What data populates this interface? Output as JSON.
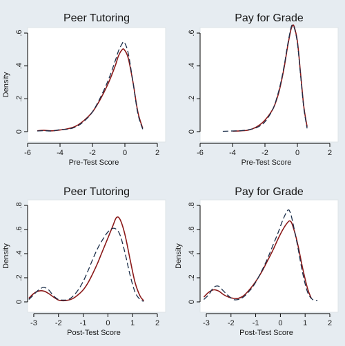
{
  "colors": {
    "background": "#e6ecf1",
    "plot_bg": "#ffffff",
    "solid_line": "#8b1a1a",
    "dashed_line": "#1b2e4a",
    "axis": "#000000"
  },
  "chart_data": [
    {
      "type": "line",
      "title": "Peer Tutoring",
      "xlabel": "Pre-Test Score",
      "ylabel": "Density",
      "xlim": [
        -6,
        2
      ],
      "ylim": [
        0,
        0.6
      ],
      "xticks": [
        "-6",
        "-4",
        "-2",
        "0",
        "2"
      ],
      "xtick_values": [
        -6,
        -4,
        -2,
        0,
        2
      ],
      "yticks": [
        "0",
        ".2",
        ".4",
        ".6"
      ],
      "ytick_values": [
        0,
        0.2,
        0.4,
        0.6
      ],
      "series": [
        {
          "style": "solid",
          "x": [
            -5.4,
            -5.0,
            -4.5,
            -4.0,
            -3.5,
            -3.0,
            -2.5,
            -2.0,
            -1.5,
            -1.0,
            -0.6,
            -0.4,
            -0.2,
            -0.05,
            0.2,
            0.5,
            0.8,
            1.1
          ],
          "y": [
            0.005,
            0.008,
            0.005,
            0.01,
            0.018,
            0.035,
            0.07,
            0.12,
            0.2,
            0.3,
            0.4,
            0.46,
            0.495,
            0.5,
            0.45,
            0.3,
            0.12,
            0.02
          ]
        },
        {
          "style": "dashed",
          "x": [
            -5.4,
            -5.0,
            -4.5,
            -4.0,
            -3.5,
            -3.0,
            -2.5,
            -2.0,
            -1.5,
            -1.0,
            -0.6,
            -0.4,
            -0.2,
            -0.05,
            0.2,
            0.5,
            0.8,
            1.1
          ],
          "y": [
            0.004,
            0.006,
            0.004,
            0.012,
            0.015,
            0.03,
            0.065,
            0.12,
            0.21,
            0.32,
            0.43,
            0.49,
            0.53,
            0.545,
            0.48,
            0.3,
            0.11,
            0.015
          ]
        }
      ]
    },
    {
      "type": "line",
      "title": "Pay for Grade",
      "xlabel": "Pre-Test Score",
      "ylabel": "",
      "xlim": [
        -6,
        2
      ],
      "ylim": [
        0,
        0.6
      ],
      "xticks": [
        "-6",
        "-4",
        "-2",
        "0",
        "2"
      ],
      "xtick_values": [
        -6,
        -4,
        -2,
        0,
        2
      ],
      "yticks": [
        "0",
        ".2",
        ".4",
        ".6"
      ],
      "ytick_values": [
        0,
        0.2,
        0.4,
        0.6
      ],
      "series": [
        {
          "style": "solid",
          "x": [
            -4.0,
            -3.5,
            -3.0,
            -2.5,
            -2.0,
            -1.5,
            -1.2,
            -1.0,
            -0.8,
            -0.6,
            -0.4,
            -0.3,
            -0.2,
            0.0,
            0.2,
            0.4,
            0.6
          ],
          "y": [
            0.003,
            0.005,
            0.01,
            0.03,
            0.07,
            0.14,
            0.22,
            0.3,
            0.4,
            0.52,
            0.62,
            0.645,
            0.64,
            0.55,
            0.35,
            0.15,
            0.03
          ]
        },
        {
          "style": "dashed",
          "x": [
            -4.6,
            -4.0,
            -3.5,
            -3.0,
            -2.5,
            -2.0,
            -1.5,
            -1.2,
            -1.0,
            -0.8,
            -0.6,
            -0.4,
            -0.3,
            -0.2,
            0.0,
            0.2,
            0.4,
            0.6
          ],
          "y": [
            0.002,
            0.004,
            0.006,
            0.012,
            0.025,
            0.06,
            0.14,
            0.23,
            0.31,
            0.41,
            0.53,
            0.63,
            0.65,
            0.635,
            0.54,
            0.34,
            0.14,
            0.02
          ]
        }
      ]
    },
    {
      "type": "line",
      "title": "Peer Tutoring",
      "xlabel": "Post-Test Score",
      "ylabel": "Density",
      "xlim": [
        -3.25,
        2
      ],
      "ylim": [
        0,
        0.8
      ],
      "xticks": [
        "-3",
        "-2",
        "-1",
        "0",
        "1",
        "2"
      ],
      "xtick_values": [
        -3,
        -2,
        -1,
        0,
        1,
        2
      ],
      "yticks": [
        "0",
        ".2",
        ".4",
        ".6",
        ".8"
      ],
      "ytick_values": [
        0,
        0.2,
        0.4,
        0.6,
        0.8
      ],
      "series": [
        {
          "style": "solid",
          "x": [
            -3.2,
            -3.0,
            -2.8,
            -2.6,
            -2.4,
            -2.2,
            -2.0,
            -1.8,
            -1.6,
            -1.4,
            -1.2,
            -1.0,
            -0.8,
            -0.6,
            -0.4,
            -0.2,
            0.0,
            0.2,
            0.35,
            0.5,
            0.7,
            0.9,
            1.1,
            1.3,
            1.45
          ],
          "y": [
            0.03,
            0.07,
            0.09,
            0.09,
            0.07,
            0.04,
            0.015,
            0.01,
            0.015,
            0.03,
            0.06,
            0.1,
            0.16,
            0.24,
            0.33,
            0.43,
            0.53,
            0.63,
            0.7,
            0.68,
            0.55,
            0.35,
            0.16,
            0.05,
            0.01
          ]
        },
        {
          "style": "dashed",
          "x": [
            -3.2,
            -3.0,
            -2.8,
            -2.6,
            -2.4,
            -2.2,
            -2.0,
            -1.8,
            -1.6,
            -1.4,
            -1.2,
            -1.0,
            -0.8,
            -0.6,
            -0.4,
            -0.2,
            0.0,
            0.2,
            0.35,
            0.5,
            0.7,
            0.9,
            1.1,
            1.3,
            1.45
          ],
          "y": [
            0.02,
            0.06,
            0.1,
            0.12,
            0.1,
            0.05,
            0.02,
            0.015,
            0.02,
            0.05,
            0.1,
            0.17,
            0.26,
            0.36,
            0.45,
            0.52,
            0.58,
            0.61,
            0.6,
            0.55,
            0.4,
            0.22,
            0.08,
            0.02,
            0.005
          ]
        }
      ]
    },
    {
      "type": "line",
      "title": "Pay for Grade",
      "xlabel": "Post-Test Score",
      "ylabel": "Density",
      "xlim": [
        -3.25,
        2
      ],
      "ylim": [
        0,
        0.8
      ],
      "xticks": [
        "-3",
        "-2",
        "-1",
        "0",
        "1",
        "2"
      ],
      "xtick_values": [
        -3,
        -2,
        -1,
        0,
        1,
        2
      ],
      "yticks": [
        "0",
        ".2",
        ".4",
        ".6",
        ".8"
      ],
      "ytick_values": [
        0,
        0.2,
        0.4,
        0.6,
        0.8
      ],
      "series": [
        {
          "style": "solid",
          "x": [
            -3.1,
            -2.9,
            -2.7,
            -2.5,
            -2.3,
            -2.1,
            -1.9,
            -1.7,
            -1.5,
            -1.3,
            -1.1,
            -0.9,
            -0.7,
            -0.5,
            -0.3,
            -0.1,
            0.1,
            0.3,
            0.4,
            0.5,
            0.7,
            0.9,
            1.1,
            1.25
          ],
          "y": [
            0.04,
            0.08,
            0.1,
            0.09,
            0.06,
            0.04,
            0.03,
            0.03,
            0.05,
            0.09,
            0.14,
            0.2,
            0.27,
            0.35,
            0.43,
            0.52,
            0.6,
            0.66,
            0.67,
            0.63,
            0.48,
            0.28,
            0.11,
            0.03
          ]
        },
        {
          "style": "dashed",
          "x": [
            -3.1,
            -2.9,
            -2.7,
            -2.5,
            -2.3,
            -2.1,
            -1.9,
            -1.7,
            -1.5,
            -1.3,
            -1.1,
            -0.9,
            -0.7,
            -0.5,
            -0.3,
            -0.1,
            0.1,
            0.3,
            0.4,
            0.5,
            0.7,
            0.9,
            1.1,
            1.3,
            1.5
          ],
          "y": [
            0.02,
            0.06,
            0.12,
            0.13,
            0.09,
            0.05,
            0.02,
            0.02,
            0.04,
            0.08,
            0.13,
            0.2,
            0.28,
            0.37,
            0.47,
            0.57,
            0.68,
            0.76,
            0.74,
            0.66,
            0.46,
            0.24,
            0.08,
            0.02,
            0.01
          ]
        }
      ]
    }
  ]
}
